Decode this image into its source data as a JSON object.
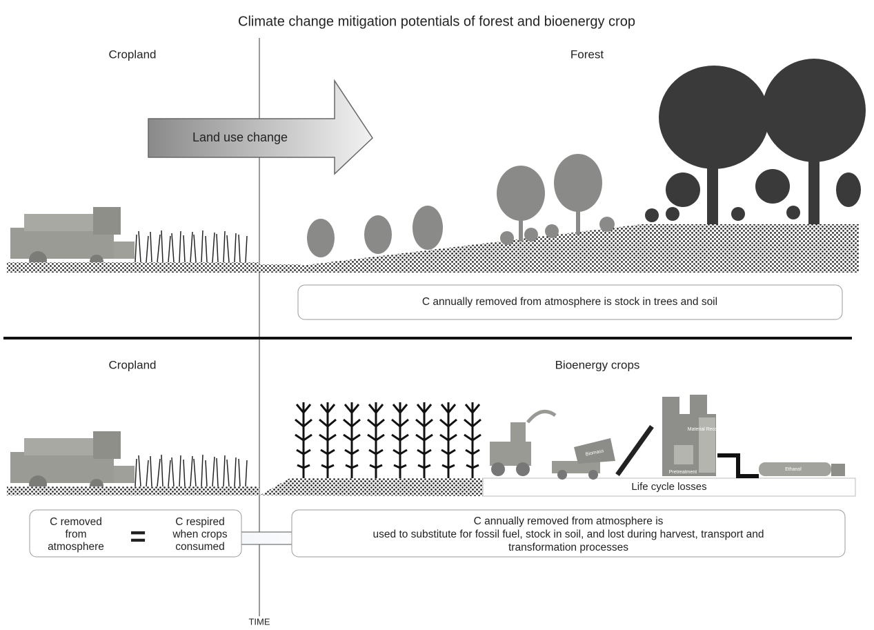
{
  "title": "Climate change mitigation potentials of forest and bioenergy crop",
  "top": {
    "left_label": "Cropland",
    "right_label": "Forest",
    "arrow_label": "Land use change",
    "note": "C annually removed from atmosphere is stock in trees and soil"
  },
  "bottom": {
    "left_label": "Cropland",
    "right_label": "Bioenergy crops",
    "losses_label": "Life cycle losses",
    "process_labels": {
      "truck": "Biomass",
      "factory": "Material Recovery",
      "pretreatment": "Pretreatment",
      "tanker": "Ethanol"
    },
    "balance": {
      "left_lines": [
        "C removed",
        "from",
        "atmosphere"
      ],
      "symbol": "=",
      "right_lines": [
        "C respired",
        "when crops",
        "consumed"
      ]
    },
    "note_lines": [
      "C annually removed from atmosphere is",
      "used to substitute for fossil fuel, stock in soil, and lost during harvest, transport and",
      "transformation processes"
    ]
  },
  "time_label": "TIME"
}
